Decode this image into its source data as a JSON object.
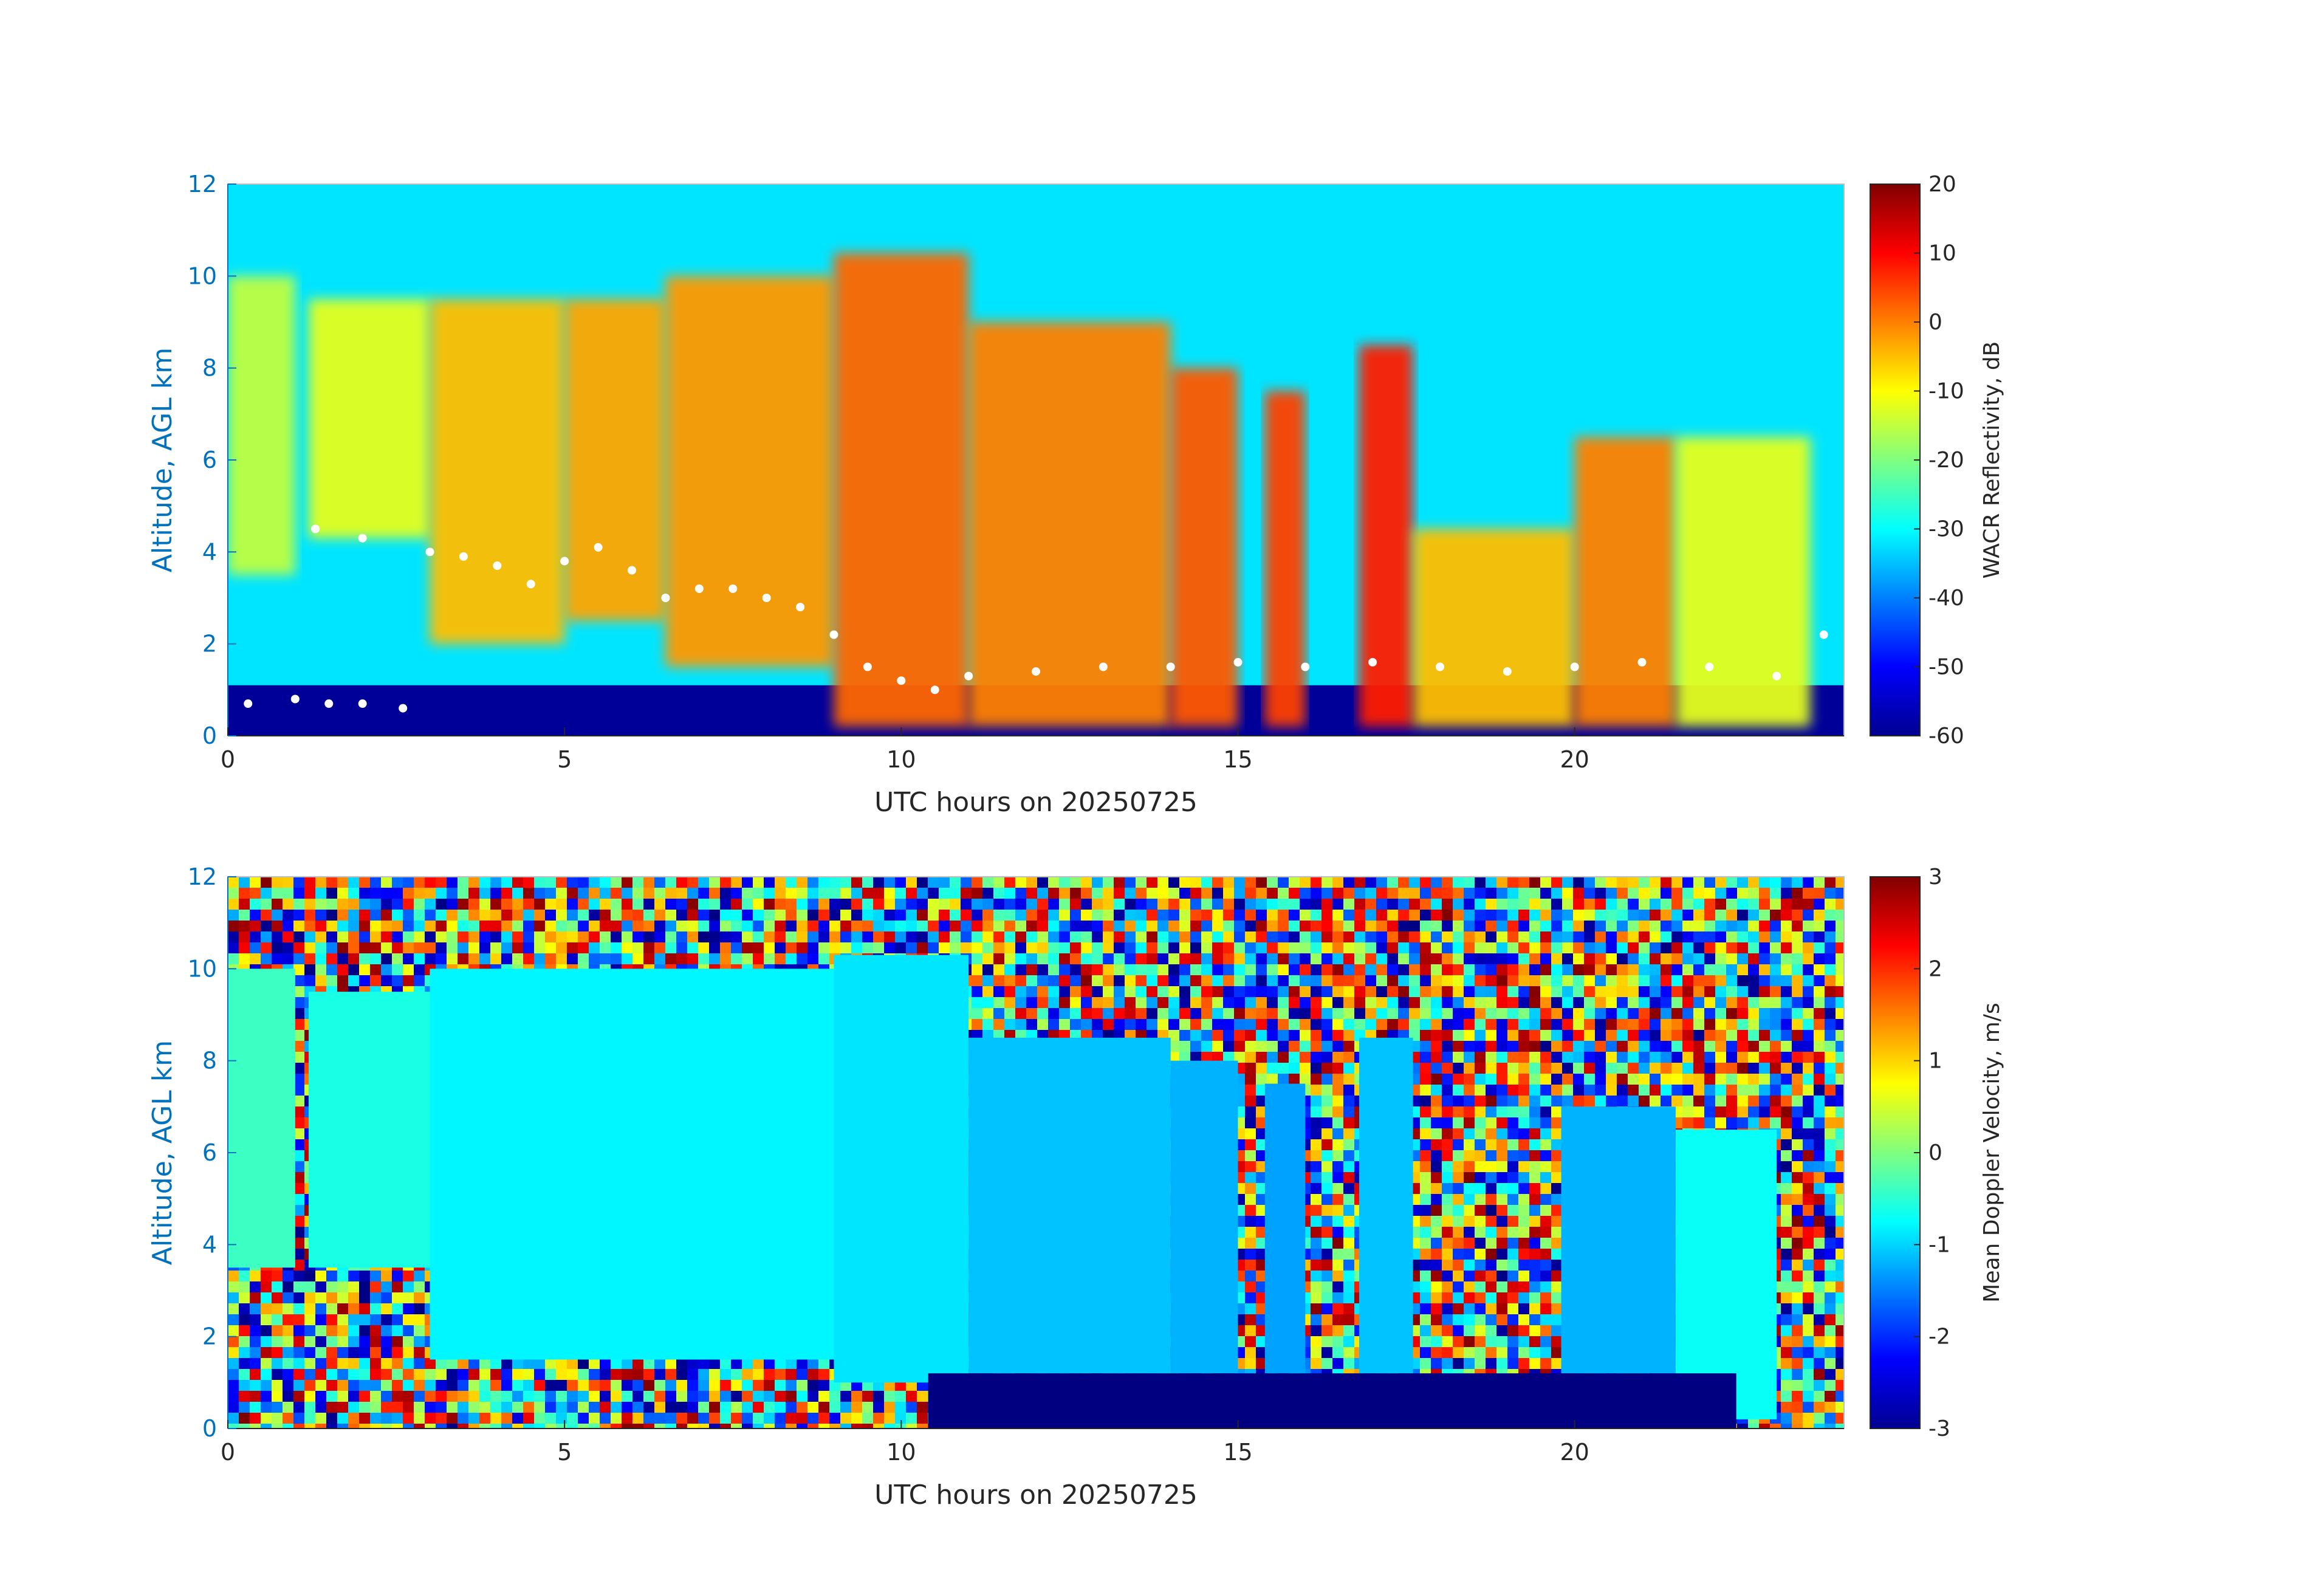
{
  "chart_data": [
    {
      "type": "heatmap",
      "title": "",
      "xlabel": "UTC hours on 20250725",
      "ylabel": "Altitude, AGL km",
      "xlim": [
        0,
        24
      ],
      "ylim": [
        0,
        12
      ],
      "x_ticks": [
        0,
        5,
        10,
        15,
        20
      ],
      "y_ticks": [
        0,
        2,
        4,
        6,
        8,
        10,
        12
      ],
      "colorbar": {
        "label": "WACR Reflectivity, dB",
        "range": [
          -60,
          20
        ],
        "ticks": [
          20,
          10,
          0,
          -10,
          -20,
          -30,
          -40,
          -50,
          -60
        ],
        "colormap": "jet"
      },
      "background_value": -32,
      "surface_layer": {
        "top_km": 1.1,
        "value": -58
      },
      "cloud_features": [
        {
          "x_start": 0.0,
          "x_end": 1.0,
          "base_km": 3.5,
          "top_km": 10.0,
          "value": -15
        },
        {
          "x_start": 1.2,
          "x_end": 3.0,
          "base_km": 4.3,
          "top_km": 9.5,
          "value": -12
        },
        {
          "x_start": 3.0,
          "x_end": 5.0,
          "base_km": 2.0,
          "top_km": 9.5,
          "value": -5
        },
        {
          "x_start": 5.0,
          "x_end": 6.5,
          "base_km": 2.5,
          "top_km": 9.5,
          "value": -3
        },
        {
          "x_start": 6.5,
          "x_end": 9.0,
          "base_km": 1.5,
          "top_km": 10.0,
          "value": -2
        },
        {
          "x_start": 9.0,
          "x_end": 11.0,
          "base_km": 0.2,
          "top_km": 10.5,
          "value": 2
        },
        {
          "x_start": 11.0,
          "x_end": 14.0,
          "base_km": 0.2,
          "top_km": 9.0,
          "value": 0
        },
        {
          "x_start": 14.0,
          "x_end": 15.0,
          "base_km": 0.2,
          "top_km": 8.0,
          "value": 3
        },
        {
          "x_start": 15.4,
          "x_end": 16.0,
          "base_km": 0.2,
          "top_km": 7.5,
          "value": 5
        },
        {
          "x_start": 16.8,
          "x_end": 17.6,
          "base_km": 0.2,
          "top_km": 8.5,
          "value": 8
        },
        {
          "x_start": 17.6,
          "x_end": 20.0,
          "base_km": 0.2,
          "top_km": 4.5,
          "value": -5
        },
        {
          "x_start": 20.0,
          "x_end": 21.5,
          "base_km": 0.2,
          "top_km": 6.5,
          "value": 0
        },
        {
          "x_start": 21.5,
          "x_end": 23.5,
          "base_km": 0.2,
          "top_km": 6.5,
          "value": -12
        }
      ],
      "cloud_base_points": [
        [
          0.3,
          0.7
        ],
        [
          1.0,
          0.8
        ],
        [
          1.5,
          0.7
        ],
        [
          2.0,
          0.7
        ],
        [
          2.6,
          0.6
        ],
        [
          1.3,
          4.5
        ],
        [
          2.0,
          4.3
        ],
        [
          3.0,
          4.0
        ],
        [
          3.5,
          3.9
        ],
        [
          4.0,
          3.7
        ],
        [
          4.5,
          3.3
        ],
        [
          5.0,
          3.8
        ],
        [
          5.5,
          4.1
        ],
        [
          6.0,
          3.6
        ],
        [
          6.5,
          3.0
        ],
        [
          7.0,
          3.2
        ],
        [
          7.5,
          3.2
        ],
        [
          8.0,
          3.0
        ],
        [
          8.5,
          2.8
        ],
        [
          9.0,
          2.2
        ],
        [
          9.5,
          1.5
        ],
        [
          10.0,
          1.2
        ],
        [
          10.5,
          1.0
        ],
        [
          11.0,
          1.3
        ],
        [
          12.0,
          1.4
        ],
        [
          13.0,
          1.5
        ],
        [
          14.0,
          1.5
        ],
        [
          15.0,
          1.6
        ],
        [
          16.0,
          1.5
        ],
        [
          17.0,
          1.6
        ],
        [
          18.0,
          1.5
        ],
        [
          19.0,
          1.4
        ],
        [
          20.0,
          1.5
        ],
        [
          21.0,
          1.6
        ],
        [
          22.0,
          1.5
        ],
        [
          23.0,
          1.3
        ],
        [
          23.7,
          2.2
        ]
      ]
    },
    {
      "type": "heatmap",
      "title": "",
      "xlabel": "UTC hours on 20250725",
      "ylabel": "Altitude, AGL km",
      "xlim": [
        0,
        24
      ],
      "ylim": [
        0,
        12
      ],
      "x_ticks": [
        0,
        5,
        10,
        15,
        20
      ],
      "y_ticks": [
        0,
        2,
        4,
        6,
        8,
        10,
        12
      ],
      "colorbar": {
        "label": "Mean Doppler Velocity, m/s",
        "range": [
          -3,
          3
        ],
        "ticks": [
          3,
          2,
          1,
          0,
          -1,
          -2,
          -3
        ],
        "colormap": "jet"
      },
      "background": "noise",
      "cloud_features": [
        {
          "x_start": 0.0,
          "x_end": 1.0,
          "base_km": 3.5,
          "top_km": 10.0,
          "value": -0.4
        },
        {
          "x_start": 1.2,
          "x_end": 3.0,
          "base_km": 3.5,
          "top_km": 9.5,
          "value": -0.6
        },
        {
          "x_start": 3.0,
          "x_end": 9.0,
          "base_km": 1.5,
          "top_km": 10.0,
          "value": -0.8
        },
        {
          "x_start": 9.0,
          "x_end": 11.0,
          "base_km": 1.0,
          "top_km": 10.3,
          "value": -0.9
        },
        {
          "x_start": 11.0,
          "x_end": 14.0,
          "base_km": 1.2,
          "top_km": 8.5,
          "value": -1.1
        },
        {
          "x_start": 14.0,
          "x_end": 15.0,
          "base_km": 1.2,
          "top_km": 8.0,
          "value": -1.2
        },
        {
          "x_start": 15.4,
          "x_end": 16.0,
          "base_km": 1.2,
          "top_km": 7.5,
          "value": -1.3
        },
        {
          "x_start": 16.8,
          "x_end": 17.6,
          "base_km": 1.2,
          "top_km": 8.5,
          "value": -1.1
        },
        {
          "x_start": 19.8,
          "x_end": 21.5,
          "base_km": 1.2,
          "top_km": 7.0,
          "value": -1.2
        },
        {
          "x_start": 21.5,
          "x_end": 23.0,
          "base_km": 0.2,
          "top_km": 6.5,
          "value": -0.7
        }
      ],
      "precip_layer": {
        "x_start": 10.4,
        "x_end": 22.4,
        "top_km": 1.2,
        "value": -3
      }
    }
  ]
}
